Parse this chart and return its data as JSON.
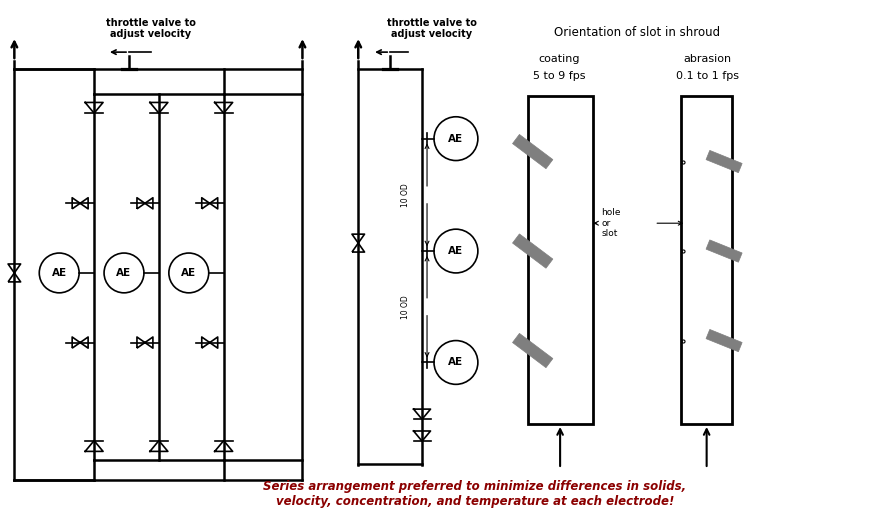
{
  "bg_color": "#ffffff",
  "line_color": "#000000",
  "gray_color": "#7f7f7f",
  "red_color": "#8B0000",
  "title_shroud": "Orientation of slot in shroud",
  "label_coating": "coating\n5 to 9 fps",
  "label_abrasion": "abrasion\n0.1 to 1 fps",
  "series_text": "Series arrangement preferred to minimize differences in solids,\nvelocity, concentration, and temperature at each electrode!",
  "throttle_text": "throttle valve to\nadjust velocity",
  "ten_od_text": "10 OD",
  "ae_text": "AE",
  "hole_slot_text": "hole\nor\nslot"
}
